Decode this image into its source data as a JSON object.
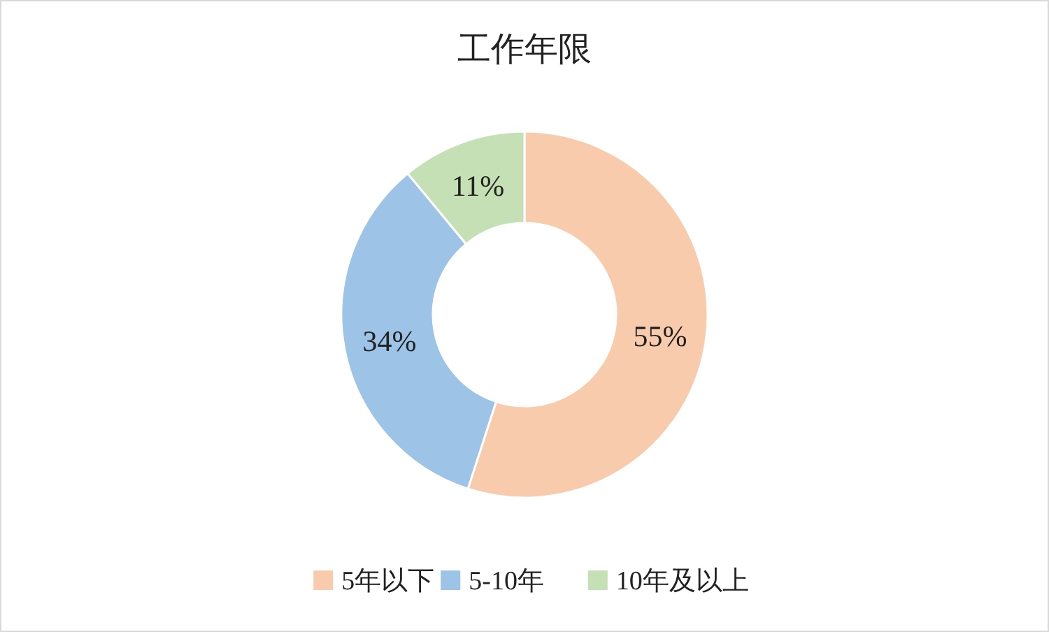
{
  "chart_data": {
    "type": "donut",
    "title": "工作年限",
    "categories": [
      "5年以下",
      "5-10年",
      "10年及以上"
    ],
    "values": [
      55,
      34,
      11
    ],
    "value_labels": [
      "55%",
      "34%",
      "11%"
    ],
    "colors": [
      "#f8cbad",
      "#9dc3e6",
      "#c5e0b4"
    ],
    "legend": "bottom"
  }
}
